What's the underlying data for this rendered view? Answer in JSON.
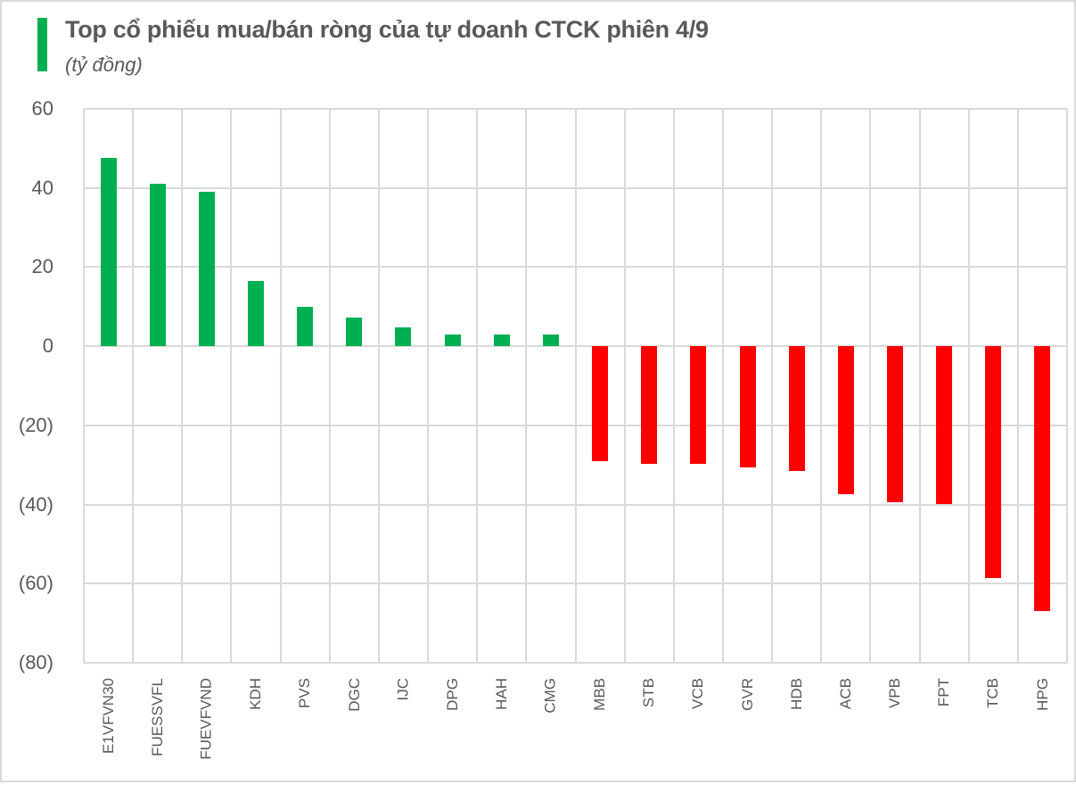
{
  "header": {
    "title": "Top cổ phiếu mua/bán ròng của tự doanh CTCK phiên 4/9",
    "subtitle": "(tỷ đồng)",
    "accent_color": "#00B050"
  },
  "colors": {
    "positive": "#00B050",
    "negative": "#FF0000",
    "grid": "#D9D9D9",
    "text": "#595959"
  },
  "y_axis": {
    "ticks": [
      {
        "value": 60,
        "label": "60"
      },
      {
        "value": 40,
        "label": "40"
      },
      {
        "value": 20,
        "label": "20"
      },
      {
        "value": 0,
        "label": "0"
      },
      {
        "value": -20,
        "label": "(20)"
      },
      {
        "value": -40,
        "label": "(40)"
      },
      {
        "value": -60,
        "label": "(60)"
      },
      {
        "value": -80,
        "label": "(80)"
      }
    ]
  },
  "chart_data": {
    "type": "bar",
    "title": "Top cổ phiếu mua/bán ròng của tự doanh CTCK phiên 4/9",
    "subtitle": "(tỷ đồng)",
    "xlabel": "",
    "ylabel": "",
    "ylim": [
      -80,
      60
    ],
    "yticks": [
      60,
      40,
      20,
      0,
      -20,
      -40,
      -60,
      -80
    ],
    "grid": true,
    "legend": null,
    "categories": [
      "E1VFVN30",
      "FUESSVFL",
      "FUEVFVND",
      "KDH",
      "PVS",
      "DGC",
      "IJC",
      "DPG",
      "HAH",
      "CMG",
      "MBB",
      "STB",
      "VCB",
      "GVR",
      "HDB",
      "ACB",
      "VPB",
      "FPT",
      "TCB",
      "HPG"
    ],
    "values": [
      47.6,
      41.1,
      39.0,
      16.5,
      9.9,
      7.3,
      4.8,
      3.0,
      3.0,
      3.0,
      -29.0,
      -29.8,
      -29.8,
      -30.7,
      -31.5,
      -37.5,
      -39.4,
      -39.9,
      -58.6,
      -66.9
    ]
  }
}
